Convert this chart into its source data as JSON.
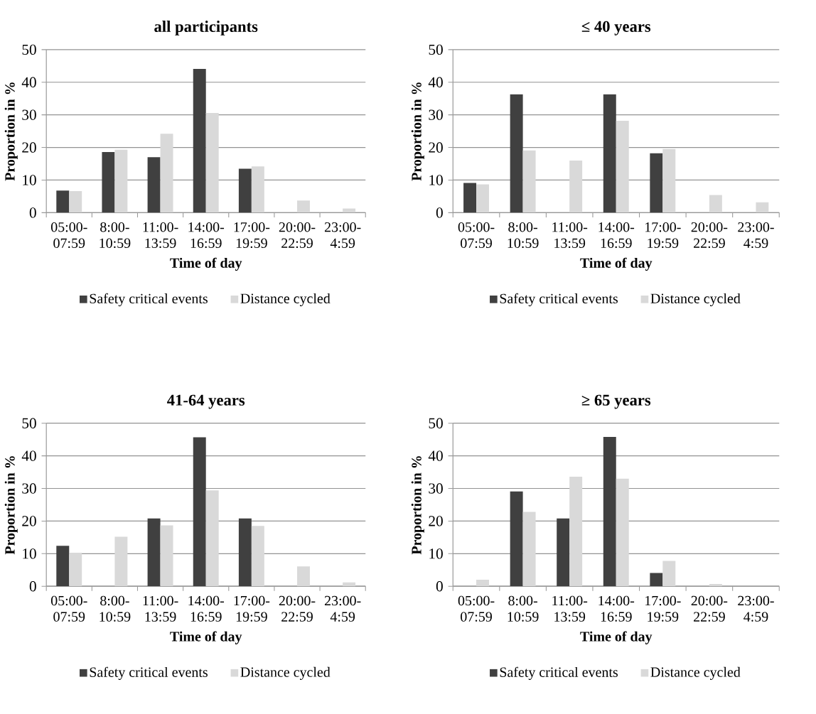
{
  "chart_data": [
    {
      "type": "bar",
      "title": "all participants",
      "xlabel": "Time of day",
      "ylabel": "Proportion in %",
      "categories": [
        "05:00-07:59",
        "8:00-10:59",
        "11:00-13:59",
        "14:00-16:59",
        "17:00-19:59",
        "20:00-22:59",
        "23:00-4:59"
      ],
      "series": [
        {
          "name": "Safety critical events",
          "color": "#404040",
          "values": [
            6.8,
            18.6,
            17.0,
            44.1,
            13.5,
            0,
            0
          ]
        },
        {
          "name": "Distance cycled",
          "color": "#d9d9d9",
          "values": [
            6.6,
            19.3,
            24.2,
            30.6,
            14.2,
            3.7,
            1.3
          ]
        }
      ],
      "ylim": [
        0,
        50
      ],
      "yticks": [
        0,
        10,
        20,
        30,
        40,
        50
      ],
      "grid": "y",
      "legend": "bottom"
    },
    {
      "type": "bar",
      "title": "≤ 40 years",
      "xlabel": "Time of day",
      "ylabel": "Proportion in %",
      "categories": [
        "05:00-07:59",
        "8:00-10:59",
        "11:00-13:59",
        "14:00-16:59",
        "17:00-19:59",
        "20:00-22:59",
        "23:00-4:59"
      ],
      "series": [
        {
          "name": "Safety critical events",
          "color": "#404040",
          "values": [
            9.1,
            36.3,
            0,
            36.3,
            18.2,
            0,
            0
          ]
        },
        {
          "name": "Distance cycled",
          "color": "#d9d9d9",
          "values": [
            8.7,
            19.1,
            16.0,
            28.2,
            19.5,
            5.4,
            3.2
          ]
        }
      ],
      "ylim": [
        0,
        50
      ],
      "yticks": [
        0,
        10,
        20,
        30,
        40,
        50
      ],
      "grid": "y",
      "legend": "bottom"
    },
    {
      "type": "bar",
      "title": "41-64 years",
      "xlabel": "Time of day",
      "ylabel": "Proportion in %",
      "categories": [
        "05:00-07:59",
        "8:00-10:59",
        "11:00-13:59",
        "14:00-16:59",
        "17:00-19:59",
        "20:00-22:59",
        "23:00-4:59"
      ],
      "series": [
        {
          "name": "Safety critical events",
          "color": "#404040",
          "values": [
            12.4,
            0,
            20.8,
            45.7,
            20.8,
            0,
            0
          ]
        },
        {
          "name": "Distance cycled",
          "color": "#d9d9d9",
          "values": [
            10.3,
            15.2,
            18.7,
            29.4,
            18.5,
            6.1,
            1.2
          ]
        }
      ],
      "ylim": [
        0,
        50
      ],
      "yticks": [
        0,
        10,
        20,
        30,
        40,
        50
      ],
      "grid": "y",
      "legend": "bottom"
    },
    {
      "type": "bar",
      "title": "≥ 65 years",
      "xlabel": "Time of day",
      "ylabel": "Proportion in %",
      "categories": [
        "05:00-07:59",
        "8:00-10:59",
        "11:00-13:59",
        "14:00-16:59",
        "17:00-19:59",
        "20:00-22:59",
        "23:00-4:59"
      ],
      "series": [
        {
          "name": "Safety critical events",
          "color": "#404040",
          "values": [
            0,
            29.1,
            20.8,
            45.8,
            4.1,
            0,
            0
          ]
        },
        {
          "name": "Distance cycled",
          "color": "#d9d9d9",
          "values": [
            2.0,
            22.8,
            33.6,
            33.0,
            7.8,
            0.7,
            0
          ]
        }
      ],
      "ylim": [
        0,
        50
      ],
      "yticks": [
        0,
        10,
        20,
        30,
        40,
        50
      ],
      "grid": "y",
      "legend": "bottom"
    }
  ]
}
